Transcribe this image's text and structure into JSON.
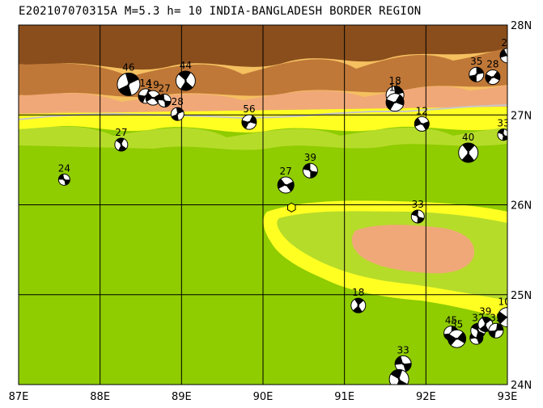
{
  "title": "E202107070315A M=5.3 h= 10 INDIA-BANGLADESH BORDER REGION",
  "map": {
    "lon_range": [
      87,
      93
    ],
    "lat_range": [
      24,
      28
    ],
    "x_ticks": [
      "87E",
      "88E",
      "89E",
      "90E",
      "91E",
      "92E",
      "93E"
    ],
    "y_ticks": [
      "24N",
      "25N",
      "26N",
      "27N",
      "28N"
    ],
    "colors": {
      "lowland": "#8fcc00",
      "lowland_light": "#b6dc2a",
      "yellow": "#ffff22",
      "orange_light": "#f5c060",
      "salmon": "#f0a878",
      "brown": "#c07838",
      "dark_brown": "#8a4e1c",
      "border_line": "#c8c8c8",
      "epicenter": "#ffff00"
    },
    "mainshock": {
      "lon": 90.35,
      "lat": 25.97
    },
    "events": [
      {
        "lon": 87.56,
        "lat": 26.28,
        "depth": "24",
        "r": 7
      },
      {
        "lon": 88.26,
        "lat": 26.67,
        "depth": "27",
        "r": 8
      },
      {
        "lon": 88.35,
        "lat": 27.34,
        "depth": "46",
        "r": 14
      },
      {
        "lon": 88.56,
        "lat": 27.21,
        "depth": "14",
        "r": 9
      },
      {
        "lon": 88.65,
        "lat": 27.19,
        "depth": "19",
        "r": 9
      },
      {
        "lon": 88.79,
        "lat": 27.16,
        "depth": "27",
        "r": 8
      },
      {
        "lon": 89.05,
        "lat": 27.38,
        "depth": "44",
        "r": 12
      },
      {
        "lon": 88.95,
        "lat": 27.01,
        "depth": "28",
        "r": 8
      },
      {
        "lon": 89.83,
        "lat": 26.92,
        "depth": "56",
        "r": 9
      },
      {
        "lon": 90.28,
        "lat": 26.22,
        "depth": "27",
        "r": 10
      },
      {
        "lon": 90.58,
        "lat": 26.38,
        "depth": "39",
        "r": 9
      },
      {
        "lon": 90.62,
        "lat": 27.18,
        "depth": "",
        "r": 0
      },
      {
        "lon": 91.62,
        "lat": 27.22,
        "depth": "18",
        "r": 11
      },
      {
        "lon": 91.62,
        "lat": 27.14,
        "depth": "15",
        "r": 11
      },
      {
        "lon": 91.95,
        "lat": 26.9,
        "depth": "12",
        "r": 9
      },
      {
        "lon": 91.9,
        "lat": 25.87,
        "depth": "33",
        "r": 8
      },
      {
        "lon": 92.52,
        "lat": 26.58,
        "depth": "40",
        "r": 12
      },
      {
        "lon": 92.62,
        "lat": 27.45,
        "depth": "35",
        "r": 9
      },
      {
        "lon": 92.82,
        "lat": 27.42,
        "depth": "28",
        "r": 9
      },
      {
        "lon": 93.0,
        "lat": 27.66,
        "depth": "26",
        "r": 9
      },
      {
        "lon": 92.95,
        "lat": 26.78,
        "depth": "33",
        "r": 7
      },
      {
        "lon": 91.17,
        "lat": 24.88,
        "depth": "18",
        "r": 9
      },
      {
        "lon": 92.31,
        "lat": 24.57,
        "depth": "45",
        "r": 9
      },
      {
        "lon": 92.38,
        "lat": 24.51,
        "depth": "55",
        "r": 11
      },
      {
        "lon": 92.62,
        "lat": 24.52,
        "depth": "",
        "r": 8
      },
      {
        "lon": 92.64,
        "lat": 24.6,
        "depth": "32",
        "r": 9
      },
      {
        "lon": 92.73,
        "lat": 24.67,
        "depth": "39",
        "r": 9
      },
      {
        "lon": 92.86,
        "lat": 24.6,
        "depth": "35",
        "r": 9
      },
      {
        "lon": 93.0,
        "lat": 24.75,
        "depth": "102",
        "r": 12
      },
      {
        "lon": 91.72,
        "lat": 24.23,
        "depth": "33",
        "r": 10
      },
      {
        "lon": 91.67,
        "lat": 24.06,
        "depth": "",
        "r": 12
      }
    ]
  }
}
